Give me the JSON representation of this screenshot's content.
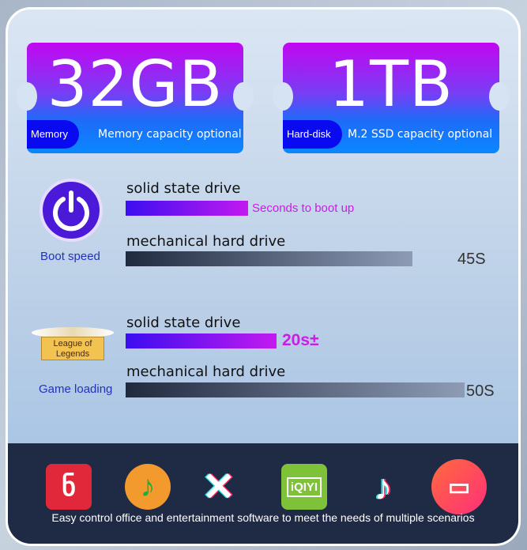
{
  "memory": {
    "value": "32GB",
    "tag": "Memory",
    "subtitle": "Memory capacity optional"
  },
  "disk": {
    "value": "1TB",
    "tag": "Hard-disk",
    "subtitle": "M.2 SSD capacity optional"
  },
  "boot": {
    "caption": "Boot speed",
    "icon": "power-icon",
    "ssd_label": "solid state drive",
    "ssd_note": "Seconds to boot up",
    "hdd_label": "mechanical hard drive",
    "hdd_value": "45S"
  },
  "game": {
    "caption": "Game loading",
    "logo_text": "League of Legends",
    "ssd_label": "solid state drive",
    "ssd_value": "20s±",
    "hdd_label": "mechanical hard drive",
    "hdd_value": "50S"
  },
  "apps": [
    "netease-music-icon",
    "qq-music-icon",
    "capcut-icon",
    "iqiyi-icon",
    "tiktok-icon",
    "video-camera-icon"
  ],
  "iqiyi_text": "iQIYI",
  "footer": "Easy control office and entertainment software to meet the needs of multiple scenarios"
}
